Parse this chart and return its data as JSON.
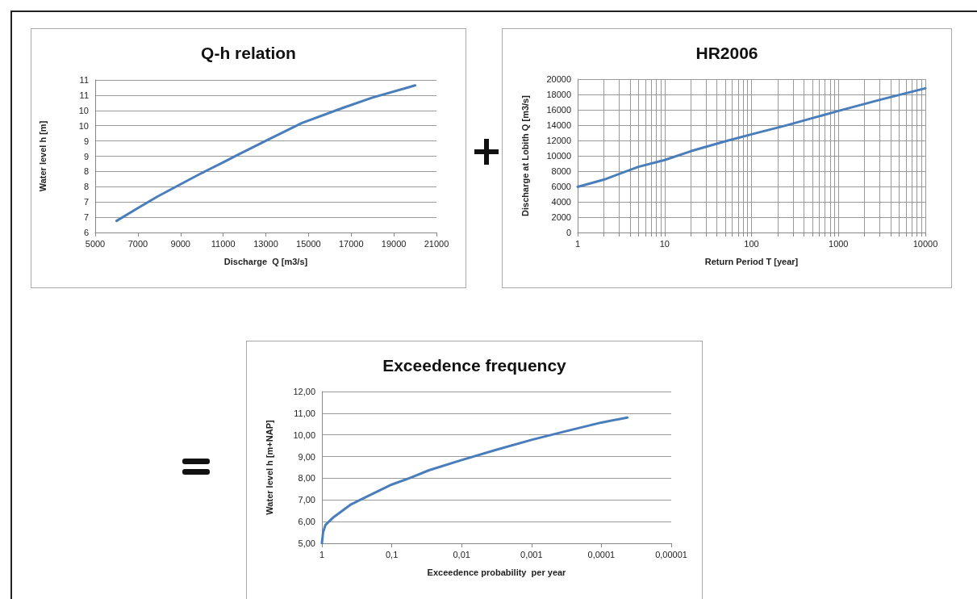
{
  "chart_data": [
    {
      "type": "line",
      "title": "Q-h relation",
      "xlabel": "Discharge  Q [m3/s]",
      "ylabel": "Water level h [m]",
      "color": "#4a7ebb",
      "marker": "none",
      "grid": "y",
      "x": [
        6000,
        7000,
        7900,
        9000,
        10000,
        11000,
        11640,
        13040,
        14690,
        16600,
        18000,
        20000
      ],
      "values": [
        6.38,
        6.8,
        7.17,
        7.58,
        7.95,
        8.3,
        8.53,
        9.02,
        9.59,
        10.08,
        10.42,
        10.82
      ],
      "xlim": [
        5000,
        21000
      ],
      "xticks": [
        5000,
        7000,
        9000,
        11000,
        13000,
        15000,
        17000,
        19000,
        21000
      ],
      "ylim": [
        6,
        11
      ],
      "yticks": [
        6,
        {
          "value": 6.5,
          "label": "7"
        },
        7,
        {
          "value": 7.5,
          "label": "8"
        },
        8,
        {
          "value": 8.5,
          "label": "9"
        },
        9,
        {
          "value": 9.5,
          "label": "10"
        },
        10,
        {
          "value": 10.5,
          "label": "11"
        },
        11
      ]
    },
    {
      "type": "line",
      "title": "HR2006",
      "xlabel": "Return Period T [year]",
      "ylabel": "Discharge at Lobith Q [m3/s]",
      "color": "#4a7ebb",
      "marker": "none",
      "grid": true,
      "log": "x",
      "x": [
        1,
        2,
        5,
        10,
        20,
        50,
        100,
        250,
        1000,
        3000,
        10000
      ],
      "values": [
        5950,
        6890,
        8570,
        9450,
        10600,
        11900,
        12800,
        13960,
        15850,
        17300,
        18800
      ],
      "xlim": [
        1,
        10000
      ],
      "xticks": [
        1,
        {
          "value": 2,
          "label": null
        },
        {
          "value": 3,
          "label": null
        },
        {
          "value": 4,
          "label": null
        },
        {
          "value": 5,
          "label": null
        },
        {
          "value": 6,
          "label": null
        },
        {
          "value": 7,
          "label": null
        },
        {
          "value": 8,
          "label": null
        },
        {
          "value": 9,
          "label": null
        },
        10,
        {
          "value": 20,
          "label": null
        },
        {
          "value": 30,
          "label": null
        },
        {
          "value": 40,
          "label": null
        },
        {
          "value": 50,
          "label": null
        },
        {
          "value": 60,
          "label": null
        },
        {
          "value": 70,
          "label": null
        },
        {
          "value": 80,
          "label": null
        },
        {
          "value": 90,
          "label": null
        },
        100,
        {
          "value": 200,
          "label": null
        },
        {
          "value": 300,
          "label": null
        },
        {
          "value": 400,
          "label": null
        },
        {
          "value": 500,
          "label": null
        },
        {
          "value": 600,
          "label": null
        },
        {
          "value": 700,
          "label": null
        },
        {
          "value": 800,
          "label": null
        },
        {
          "value": 900,
          "label": null
        },
        1000,
        {
          "value": 2000,
          "label": null
        },
        {
          "value": 3000,
          "label": null
        },
        {
          "value": 4000,
          "label": null
        },
        {
          "value": 5000,
          "label": null
        },
        {
          "value": 6000,
          "label": null
        },
        {
          "value": 7000,
          "label": null
        },
        {
          "value": 8000,
          "label": null
        },
        {
          "value": 9000,
          "label": null
        },
        10000
      ],
      "ylim": [
        0,
        20000
      ],
      "yticks": [
        0,
        2000,
        4000,
        6000,
        8000,
        10000,
        12000,
        14000,
        16000,
        18000,
        20000
      ]
    },
    {
      "type": "line",
      "title": "Exceedence frequency",
      "xlabel": "Exceedence probability  per year",
      "ylabel": "Water level h [m+NAP]",
      "color": "#4a7ebb",
      "marker": "none",
      "grid": "y",
      "log": "x",
      "x": [
        1,
        0.962,
        0.891,
        0.701,
        0.525,
        0.394,
        0.243,
        0.1,
        0.0524,
        0.0293,
        0.01,
        0.00322,
        0.001,
        0.000322,
        0.0001,
        4.25e-05
      ],
      "values": [
        5.0,
        5.51,
        5.84,
        6.17,
        6.47,
        6.77,
        7.11,
        7.71,
        8.04,
        8.37,
        8.84,
        9.31,
        9.77,
        10.17,
        10.57,
        10.8
      ],
      "xlim": [
        1,
        1e-05
      ],
      "xticks": [
        1,
        {
          "value": 0.1,
          "label": "0,1"
        },
        {
          "value": 0.01,
          "label": "0,01"
        },
        {
          "value": 0.001,
          "label": "0,001"
        },
        {
          "value": 0.0001,
          "label": "0,0001"
        },
        {
          "value": 1e-05,
          "label": "0,00001"
        }
      ],
      "ylim": [
        5,
        12
      ],
      "yticks": [
        {
          "value": 5,
          "label": "5,00"
        },
        {
          "value": 6,
          "label": "6,00"
        },
        {
          "value": 7,
          "label": "7,00"
        },
        {
          "value": 8,
          "label": "8,00"
        },
        {
          "value": 9,
          "label": "9,00"
        },
        {
          "value": 10,
          "label": "10,00"
        },
        {
          "value": 11,
          "label": "11,00"
        },
        {
          "value": 12,
          "label": "12,00"
        }
      ]
    }
  ]
}
